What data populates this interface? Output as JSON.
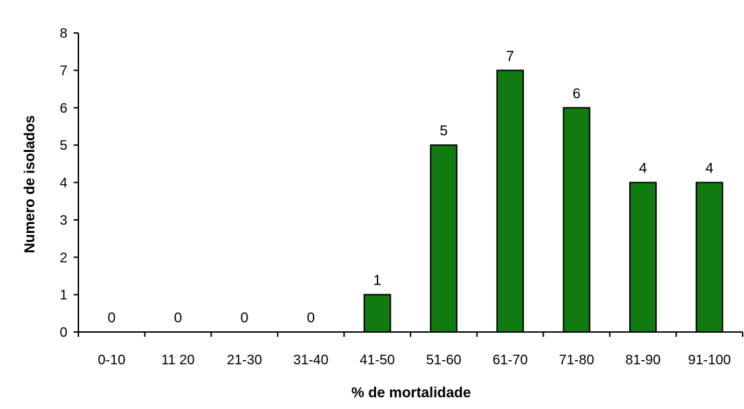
{
  "chart_data": {
    "type": "bar",
    "title": "",
    "xlabel": "% de mortalidade",
    "ylabel": "Numero de isolados",
    "categories": [
      "0-10",
      "11 20",
      "21-30",
      "31-40",
      "41-50",
      "51-60",
      "61-70",
      "71-80",
      "81-90",
      "91-100"
    ],
    "values": [
      0,
      0,
      0,
      0,
      1,
      5,
      7,
      6,
      4,
      4
    ],
    "data_labels": [
      "0",
      "0",
      "0",
      "0",
      "1",
      "5",
      "7",
      "6",
      "4",
      "4"
    ],
    "ylim": [
      0,
      8
    ],
    "yticks": [
      "0",
      "1",
      "2",
      "3",
      "4",
      "5",
      "6",
      "7",
      "8"
    ],
    "grid": false,
    "legend": "none",
    "bar_color": "#117a11"
  }
}
